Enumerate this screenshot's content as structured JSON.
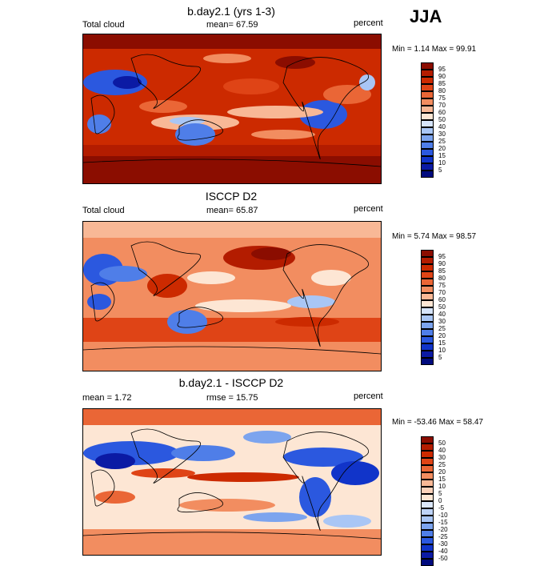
{
  "season": "JJA",
  "panels": [
    {
      "title": "b.day2.1 (yrs 1-3)",
      "left_label": "Total cloud",
      "center_label": "mean=  67.59",
      "right_label": "percent",
      "minmax": "Min =   1.14 Max =  99.91",
      "colorbar_labels": [
        "95",
        "90",
        "85",
        "80",
        "75",
        "70",
        "60",
        "50",
        "40",
        "30",
        "25",
        "20",
        "15",
        "10",
        "5"
      ],
      "colorbar_colors": [
        "#8b0d00",
        "#b31c00",
        "#cc2a00",
        "#df4416",
        "#ea6636",
        "#f28d60",
        "#f8b896",
        "#fde6d4",
        "#d6e4fa",
        "#a9c6f5",
        "#7ca4ee",
        "#4f7ee8",
        "#2b58df",
        "#1134c9",
        "#0b1aa4",
        "#000a7e"
      ]
    },
    {
      "title": "ISCCP D2",
      "left_label": "Total cloud",
      "center_label": "mean=  65.87",
      "right_label": "percent",
      "minmax": "Min =   5.74 Max =  98.57",
      "colorbar_labels": [
        "95",
        "90",
        "85",
        "80",
        "75",
        "70",
        "60",
        "50",
        "40",
        "30",
        "25",
        "20",
        "15",
        "10",
        "5"
      ],
      "colorbar_colors": [
        "#8b0d00",
        "#b31c00",
        "#cc2a00",
        "#df4416",
        "#ea6636",
        "#f28d60",
        "#f8b896",
        "#fde6d4",
        "#d6e4fa",
        "#a9c6f5",
        "#7ca4ee",
        "#4f7ee8",
        "#2b58df",
        "#1134c9",
        "#0b1aa4",
        "#000a7e"
      ]
    },
    {
      "title": "b.day2.1 - ISCCP D2",
      "left_label": "mean =    1.72",
      "center_label": "rmse =  15.75",
      "right_label": "percent",
      "minmax": "Min = -53.46 Max =  58.47",
      "colorbar_labels": [
        "50",
        "40",
        "30",
        "25",
        "20",
        "15",
        "10",
        "5",
        "0",
        "-5",
        "-10",
        "-15",
        "-20",
        "-25",
        "-30",
        "-40",
        "-50"
      ],
      "colorbar_colors": [
        "#8b0d00",
        "#b31c00",
        "#cc2a00",
        "#df4416",
        "#ea6636",
        "#f28d60",
        "#f8b896",
        "#fbd2bb",
        "#fde6d4",
        "#dbe7fa",
        "#bdd3f7",
        "#a9c6f5",
        "#7ca4ee",
        "#4f7ee8",
        "#2b58df",
        "#1134c9",
        "#0b1aa4",
        "#000a7e"
      ]
    }
  ],
  "palette": {
    "red_dark": "#8b0d00",
    "red": "#cc2a00",
    "orange": "#ea6636",
    "salmon": "#f8b896",
    "white": "#fde6d4",
    "blue_light": "#a9c6f5",
    "blue": "#2b58df",
    "blue_dark": "#000a7e"
  }
}
